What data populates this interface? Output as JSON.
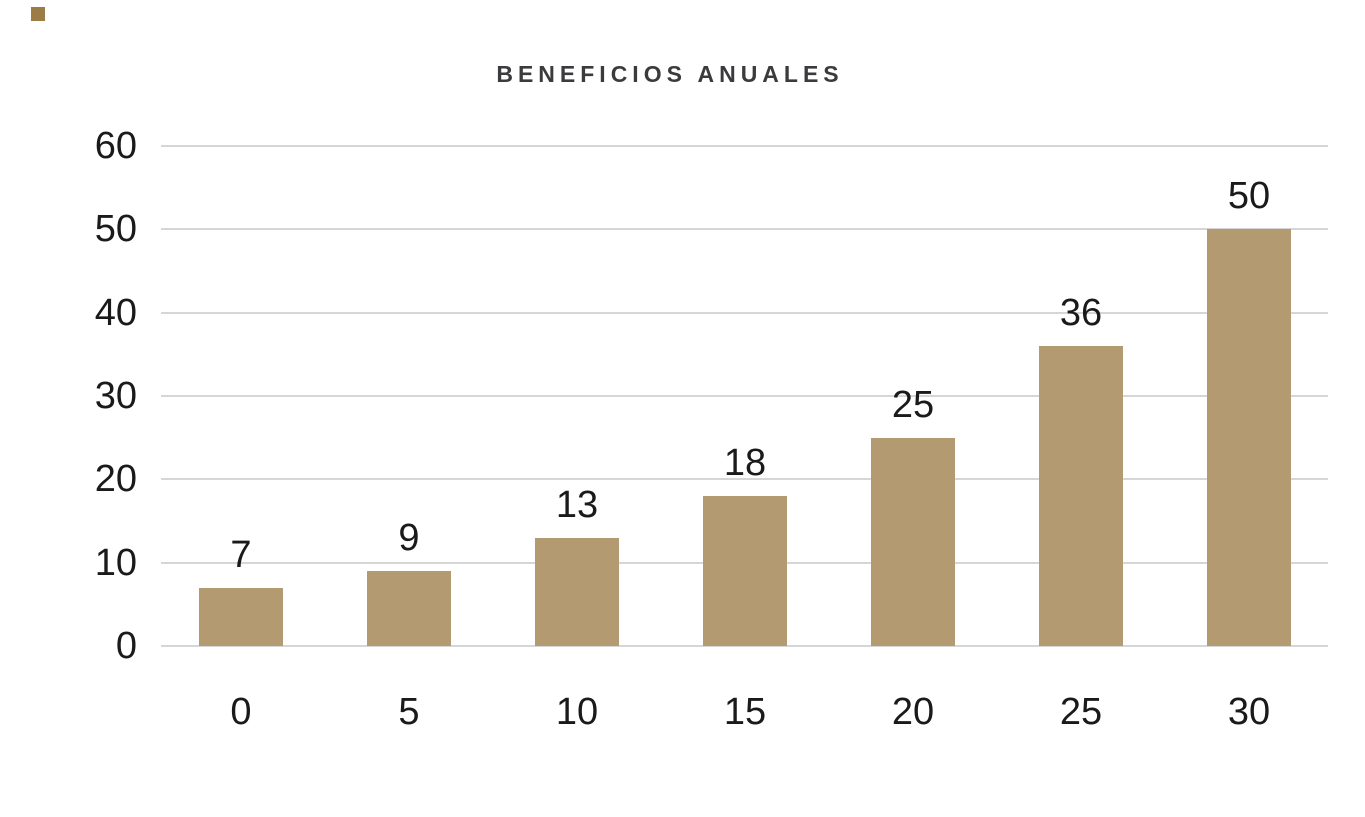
{
  "page": {
    "background_color": "#ffffff"
  },
  "legend_swatch": {
    "color": "#9c7c45"
  },
  "chart_data": {
    "type": "bar",
    "title": "BENEFICIOS ANUALES",
    "categories": [
      "0",
      "5",
      "10",
      "15",
      "20",
      "25",
      "30"
    ],
    "values": [
      7,
      9,
      13,
      18,
      25,
      36,
      50
    ],
    "value_labels": [
      "7",
      "9",
      "13",
      "18",
      "25",
      "36",
      "50"
    ],
    "xlabel": "",
    "ylabel": "",
    "yticks": [
      0,
      10,
      20,
      30,
      40,
      50,
      60
    ],
    "ytick_labels": [
      "0",
      "10",
      "20",
      "30",
      "40",
      "50",
      "60"
    ],
    "ylim": [
      0,
      60
    ],
    "grid": true,
    "legend_position": "none",
    "bar_color": "#b39a71",
    "gridline_color": "#d6d6d6",
    "title_color": "#3b3b3e",
    "label_color": "#1a1a1a"
  }
}
